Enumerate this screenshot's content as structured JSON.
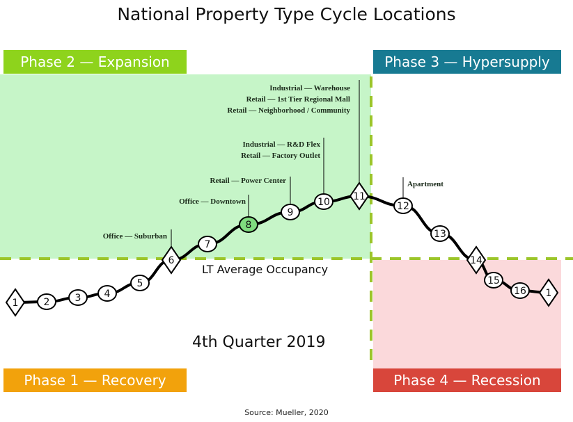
{
  "title": "National Property Type Cycle Locations",
  "phases": {
    "phase1": {
      "label": "Phase 1 — Recovery",
      "color": "#f2a20c"
    },
    "phase2": {
      "label": "Phase 2 — Expansion",
      "color": "#8ed31c"
    },
    "phase3": {
      "label": "Phase 3 — Hypersupply",
      "color": "#177a92"
    },
    "phase4": {
      "label": "Phase 4 — Recession",
      "color": "#d8463b"
    }
  },
  "lt_average_label": "LT Average Occupancy",
  "quarter_label": "4th Quarter 2019",
  "source": "Source: Mueller, 2020",
  "points": [
    {
      "label": "1",
      "shape": "diamond"
    },
    {
      "label": "2",
      "shape": "circle"
    },
    {
      "label": "3",
      "shape": "circle"
    },
    {
      "label": "4",
      "shape": "circle"
    },
    {
      "label": "5",
      "shape": "circle"
    },
    {
      "label": "6",
      "shape": "diamond"
    },
    {
      "label": "7",
      "shape": "circle"
    },
    {
      "label": "8",
      "shape": "circle",
      "highlight": "#7fdc7f"
    },
    {
      "label": "9",
      "shape": "circle"
    },
    {
      "label": "10",
      "shape": "circle"
    },
    {
      "label": "11",
      "shape": "diamond"
    },
    {
      "label": "12",
      "shape": "circle"
    },
    {
      "label": "13",
      "shape": "circle"
    },
    {
      "label": "14",
      "shape": "diamond"
    },
    {
      "label": "15",
      "shape": "circle"
    },
    {
      "label": "16",
      "shape": "circle"
    },
    {
      "label": "1",
      "shape": "diamond"
    }
  ],
  "annotations": [
    {
      "point": "6",
      "lines": [
        "Office — Suburban"
      ]
    },
    {
      "point": "8",
      "lines": [
        "Office — Downtown"
      ]
    },
    {
      "point": "9",
      "lines": [
        "Retail — Power Center"
      ]
    },
    {
      "point": "10",
      "lines": [
        "Industrial — R&D Flex",
        "Retail — Factory Outlet"
      ]
    },
    {
      "point": "11",
      "lines": [
        "Industrial — Warehouse",
        "Retail — 1st Tier Regional Mall",
        "Retail — Neighborhood / Community"
      ]
    },
    {
      "point": "12",
      "lines": [
        "Apartment"
      ]
    }
  ]
}
